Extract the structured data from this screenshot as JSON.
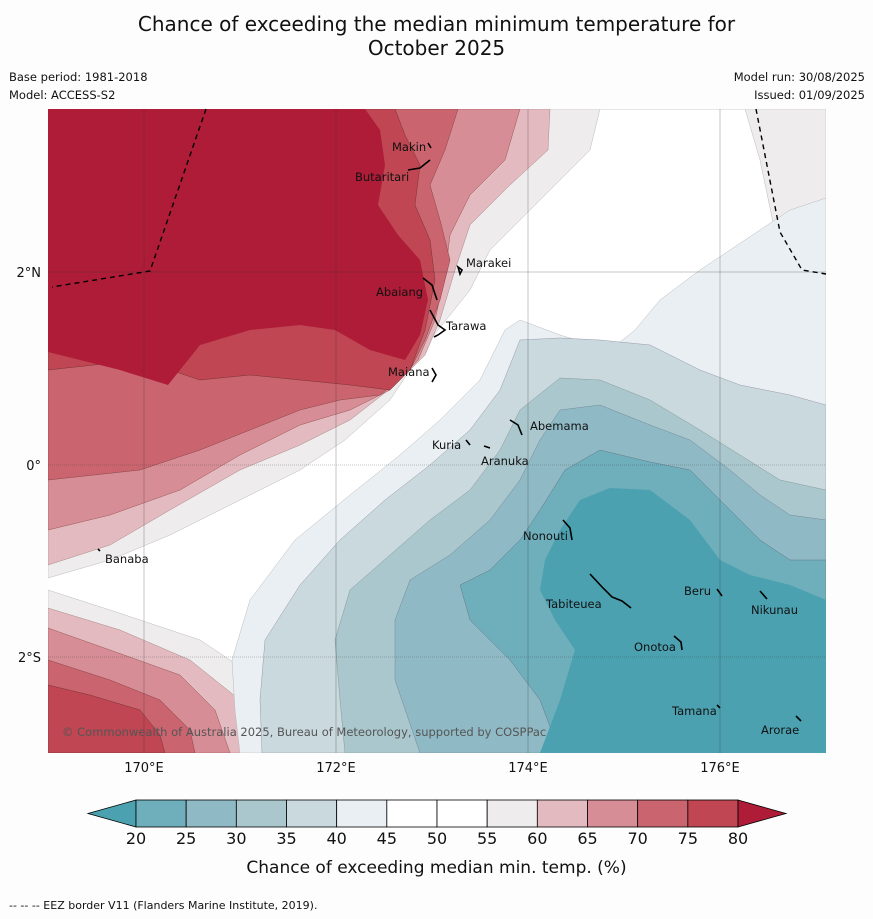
{
  "title_line1": "Chance of exceeding the median minimum temperature for",
  "title_line2": "October 2025",
  "meta": {
    "base_period": "Base period: 1981-2018",
    "model": "Model: ACCESS-S2",
    "model_run": "Model run: 30/08/2025",
    "issued": "Issued: 01/09/2025"
  },
  "map": {
    "lon_labels": [
      "170°E",
      "172°E",
      "174°E",
      "176°E"
    ],
    "lat_labels": [
      "2°N",
      "0°",
      "2°S"
    ],
    "islands": [
      "Makin",
      "Butaritari",
      "Marakei",
      "Abaiang",
      "Tarawa",
      "Maiana",
      "Abemama",
      "Kuria",
      "Aranuka",
      "Nonouti",
      "Banaba",
      "Tabiteuea",
      "Beru",
      "Nikunau",
      "Onotoa",
      "Tamana",
      "Arorae"
    ],
    "copyright": "© Commonwealth of Australia 2025, Bureau of Meteorology, supported by COSPPac",
    "lat_line_labels": {
      "n2": "2°N",
      "eq": "0°",
      "s2": "2°S"
    }
  },
  "colorbar": {
    "ticks": [
      "20",
      "25",
      "30",
      "35",
      "40",
      "45",
      "50",
      "55",
      "60",
      "65",
      "70",
      "75",
      "80"
    ],
    "colors": [
      "#4ba1b0",
      "#6faebb",
      "#8fbac5",
      "#a9c7cd",
      "#c9d9de",
      "#e9eff2",
      "#ffffff",
      "#ffffff",
      "#eeeced",
      "#e2bac0",
      "#d78d95",
      "#ca6570",
      "#bf4652",
      "#ae1c37"
    ],
    "label": "Chance of exceeding median min. temp. (%)"
  },
  "footnote": "-- -- -- EEZ border V11 (Flanders Marine Institute, 2019)."
}
